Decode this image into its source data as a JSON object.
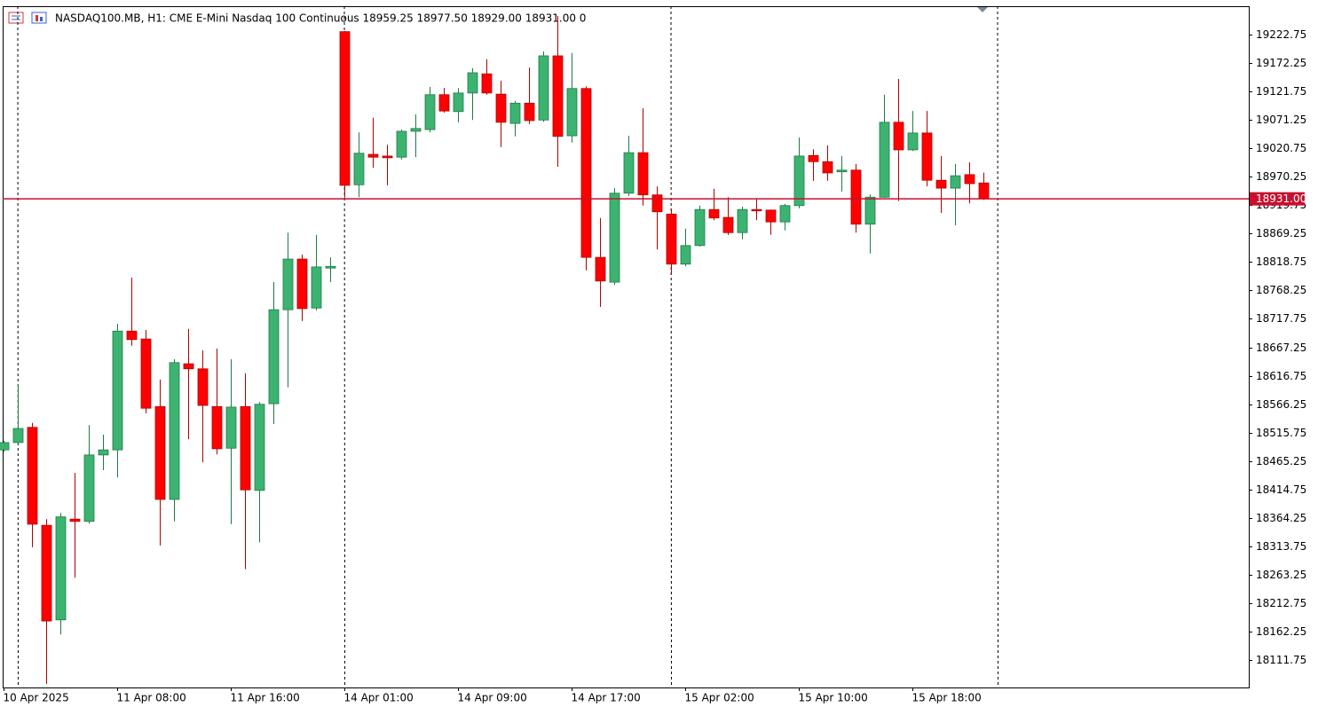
{
  "chart_data": {
    "type": "candlestick",
    "title": "NASDAQ100.MB, H1:  CME E-Mini Nasdaq 100 Continuous  18959.25 18977.50 18929.00 18931.00  0",
    "categories": [
      "10 Apr 2025",
      null,
      null,
      null,
      null,
      null,
      null,
      null,
      "11 Apr 08:00",
      null,
      null,
      null,
      null,
      null,
      null,
      null,
      "11 Apr 16:00",
      null,
      null,
      null,
      null,
      null,
      null,
      null,
      "14 Apr 01:00",
      null,
      null,
      null,
      null,
      null,
      null,
      null,
      "14 Apr 09:00",
      null,
      null,
      null,
      null,
      null,
      null,
      null,
      "14 Apr 17:00",
      null,
      null,
      null,
      null,
      null,
      null,
      null,
      "15 Apr 02:00",
      null,
      null,
      null,
      null,
      null,
      null,
      null,
      "15 Apr 10:00",
      null,
      null,
      null,
      null,
      null,
      null,
      null,
      "15 Apr 18:00",
      null,
      null,
      null,
      null,
      null
    ],
    "open": [
      18485,
      18498,
      18525,
      18351,
      18183,
      18362,
      18358,
      18476,
      18485,
      18696,
      18682,
      18562,
      18397,
      18638,
      18629,
      18562,
      18488,
      18562,
      18413,
      18567,
      18734,
      18824,
      18737,
      18808,
      19228,
      18956,
      19010,
      19007,
      19005,
      19051,
      19054,
      19116,
      19086,
      19119,
      19153,
      19117,
      19065,
      19101,
      19071,
      19185,
      19043,
      19127,
      18827,
      18783,
      18941,
      19013,
      18938,
      18904,
      18815,
      18848,
      18912,
      18898,
      18871,
      18912,
      18911,
      18890,
      18919,
      19008,
      18997,
      18979,
      18982,
      18886,
      18934,
      19067,
      19018,
      19048,
      18964,
      18950,
      18974,
      18959.25
    ],
    "high": [
      18501,
      18602,
      18533,
      18362,
      18373,
      18444,
      18529,
      18512,
      18709,
      18791,
      18698,
      18610,
      18646,
      18700,
      18662,
      18665,
      18646,
      18621,
      18570,
      18783,
      18871,
      18832,
      18867,
      18827,
      19229,
      19049,
      19075,
      19027,
      19054,
      19081,
      19130,
      19128,
      19128,
      19163,
      19179,
      19141,
      19105,
      19164,
      19193,
      19256,
      19190,
      19131,
      18897,
      18950,
      19043,
      19092,
      18953,
      18914,
      18878,
      18919,
      18949,
      18934,
      18917,
      18931,
      18912,
      18922,
      19040,
      19019,
      19026,
      19007,
      18993,
      18939,
      19116,
      19144,
      19087,
      19087,
      19007,
      18993,
      18996,
      18977.5
    ],
    "low": [
      18482,
      18496,
      18312,
      18069,
      18157,
      18258,
      18354,
      18449,
      18436,
      18670,
      18550,
      18315,
      18358,
      18504,
      18463,
      18477,
      18353,
      18273,
      18321,
      18531,
      18596,
      18714,
      18733,
      18783,
      18933,
      18934,
      18986,
      18955,
      19001,
      19005,
      19049,
      19084,
      19067,
      19071,
      19116,
      19023,
      19042,
      19064,
      19068,
      18988,
      19031,
      18804,
      18739,
      18778,
      18936,
      18919,
      18841,
      18796,
      18811,
      18846,
      18893,
      18867,
      18859,
      18893,
      18867,
      18875,
      18914,
      18963,
      18963,
      18944,
      18871,
      18834,
      18933,
      18927,
      19016,
      18953,
      18906,
      18884,
      18923,
      18929
    ],
    "close": [
      18498,
      18523,
      18353,
      18181,
      18366,
      18358,
      18476,
      18485,
      18696,
      18681,
      18559,
      18397,
      18640,
      18629,
      18564,
      18487,
      18561,
      18414,
      18566,
      18734,
      18824,
      18736,
      18810,
      18811,
      18955,
      19012,
      19005,
      19004,
      19051,
      19056,
      19116,
      19087,
      19119,
      19155,
      19119,
      19067,
      19101,
      19070,
      19185,
      19042,
      19127,
      18827,
      18785,
      18941,
      19013,
      18938,
      18908,
      18815,
      18848,
      18912,
      18897,
      18871,
      18912,
      18911,
      18890,
      18919,
      19007,
      18997,
      18977,
      18982,
      18886,
      18934,
      19067,
      19018,
      19048,
      18964,
      18950,
      18972,
      18958,
      18931
    ],
    "up_color": "#3cb371",
    "down_color": "#ff0000",
    "ylim": [
      18062.9,
      19273.2
    ],
    "yticks": [
      18111.75,
      18162.25,
      18212.75,
      18263.25,
      18313.75,
      18364.25,
      18414.75,
      18465.25,
      18515.75,
      18566.25,
      18616.75,
      18667.25,
      18717.75,
      18768.25,
      18818.75,
      18869.25,
      18919.75,
      18970.25,
      19020.75,
      19071.25,
      19121.75,
      19172.25,
      19222.75
    ],
    "last_price": {
      "value": 18931,
      "label": "18931.00"
    },
    "last_price_color": "#c8102e"
  }
}
